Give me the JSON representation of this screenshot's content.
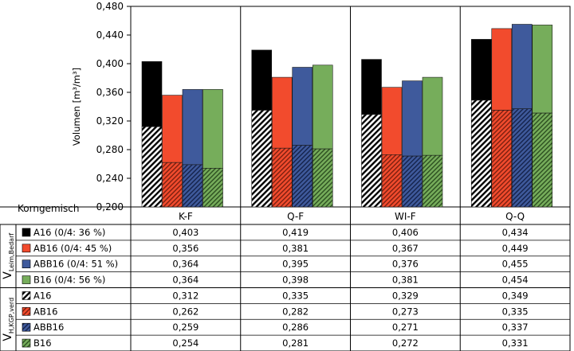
{
  "chart_data": {
    "type": "bar",
    "ylabel": "Volumen [m³/m³]",
    "ylim": [
      0.2,
      0.48
    ],
    "yticks": [
      "0,200",
      "0,240",
      "0,280",
      "0,320",
      "0,360",
      "0,400",
      "0,440",
      "0,480"
    ],
    "y_tick_values": [
      0.2,
      0.24,
      0.28,
      0.32,
      0.36,
      0.4,
      0.44,
      0.48
    ],
    "grid": false,
    "table_corner_label": "Korngemisch",
    "categories": [
      "K-F",
      "Q-F",
      "WI-F",
      "Q-Q"
    ],
    "stacked_pairs": true,
    "series": [
      {
        "name": "A16 (0/4: 36 %)",
        "group": "V_Leim,Bedarf",
        "values": [
          0.403,
          0.419,
          0.406,
          0.434
        ],
        "labels": [
          "0,403",
          "0,419",
          "0,406",
          "0,434"
        ],
        "color": "#000000",
        "pattern": "solid"
      },
      {
        "name": "AB16 (0/4: 45 %)",
        "group": "V_Leim,Bedarf",
        "values": [
          0.356,
          0.381,
          0.367,
          0.449
        ],
        "labels": [
          "0,356",
          "0,381",
          "0,367",
          "0,449"
        ],
        "color": "#f24b2d",
        "pattern": "solid"
      },
      {
        "name": "ABB16 (0/4: 51 %)",
        "group": "V_Leim,Bedarf",
        "values": [
          0.364,
          0.395,
          0.376,
          0.455
        ],
        "labels": [
          "0,364",
          "0,395",
          "0,376",
          "0,455"
        ],
        "color": "#3f5a9c",
        "pattern": "solid"
      },
      {
        "name": "B16 (0/4: 56 %)",
        "group": "V_Leim,Bedarf",
        "values": [
          0.364,
          0.398,
          0.381,
          0.454
        ],
        "labels": [
          "0,364",
          "0,398",
          "0,381",
          "0,454"
        ],
        "color": "#76ad5b",
        "pattern": "solid"
      },
      {
        "name": "A16",
        "group": "V_H,KGP,verd",
        "values": [
          0.312,
          0.335,
          0.329,
          0.349
        ],
        "labels": [
          "0,312",
          "0,335",
          "0,329",
          "0,349"
        ],
        "color": "#000000",
        "pattern": "hatch"
      },
      {
        "name": "AB16",
        "group": "V_H,KGP,verd",
        "values": [
          0.262,
          0.282,
          0.273,
          0.335
        ],
        "labels": [
          "0,262",
          "0,282",
          "0,273",
          "0,335"
        ],
        "color": "#f24b2d",
        "pattern": "hatch"
      },
      {
        "name": "ABB16",
        "group": "V_H,KGP,verd",
        "values": [
          0.259,
          0.286,
          0.271,
          0.337
        ],
        "labels": [
          "0,259",
          "0,286",
          "0,271",
          "0,337"
        ],
        "color": "#3f5a9c",
        "pattern": "hatch"
      },
      {
        "name": "B16",
        "group": "V_H,KGP,verd",
        "values": [
          0.254,
          0.281,
          0.272,
          0.331
        ],
        "labels": [
          "0,254",
          "0,281",
          "0,272",
          "0,331"
        ],
        "color": "#76ad5b",
        "pattern": "hatch"
      }
    ],
    "row_groups": [
      {
        "main": "V",
        "sub": "Leim,Bedarf",
        "rows": [
          0,
          1,
          2,
          3
        ]
      },
      {
        "main": "V",
        "sub": "H,KGP,verd",
        "rows": [
          4,
          5,
          6,
          7
        ]
      }
    ]
  }
}
